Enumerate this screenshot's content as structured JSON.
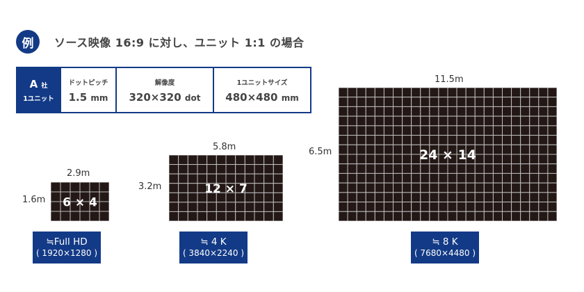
{
  "header": {
    "badge": "例",
    "title": "ソース映像 16:9 に対し、ユニット 1:1 の場合"
  },
  "spec": {
    "company": "A",
    "company_suffix": "社",
    "unit": "1ユニット",
    "columns": [
      {
        "label": "ドットピッチ",
        "value": "1.5",
        "unit": "mm"
      },
      {
        "label": "解像度",
        "value": "320×320",
        "unit": "dot"
      },
      {
        "label": "1ユニットサイズ",
        "value": "480×480",
        "unit": "mm"
      }
    ]
  },
  "colors": {
    "brand": "#133a86",
    "panel": "#231815",
    "grid_line": "#bdbdbd"
  },
  "configs": [
    {
      "cols": 6,
      "rows": 4,
      "label": "6 × 4",
      "width": "2.9m",
      "height": "1.6m",
      "resolution": "≒Full HD",
      "pixels": "( 1920×1280 )"
    },
    {
      "cols": 12,
      "rows": 7,
      "label": "12 × 7",
      "width": "5.8m",
      "height": "3.2m",
      "resolution": "≒ 4 K",
      "pixels": "( 3840×2240 )"
    },
    {
      "cols": 24,
      "rows": 14,
      "label": "24 × 14",
      "width": "11.5m",
      "height": "6.5m",
      "resolution": "≒ 8 K",
      "pixels": "( 7680×4480 )"
    }
  ]
}
